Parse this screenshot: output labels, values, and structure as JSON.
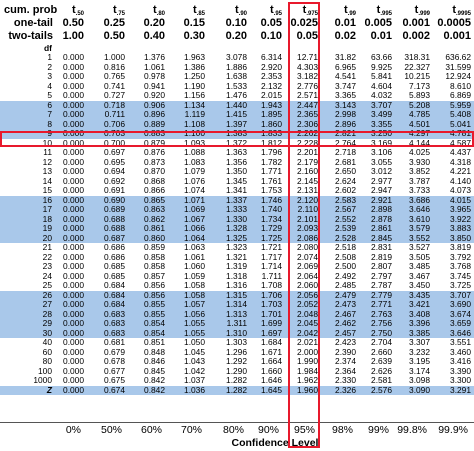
{
  "header": {
    "cum_prob_label": "cum. prob",
    "one_tail_label": "one-tail",
    "two_tails_label": "two-tails",
    "t_symbol": "t",
    "t_subscripts": [
      ".50",
      ".75",
      ".80",
      ".85",
      ".90",
      ".95",
      ".975",
      ".99",
      ".995",
      ".999",
      ".9995"
    ],
    "one_tail": [
      "0.50",
      "0.25",
      "0.20",
      "0.15",
      "0.10",
      "0.05",
      "0.025",
      "0.01",
      "0.005",
      "0.001",
      "0.0005"
    ],
    "two_tails": [
      "1.00",
      "0.50",
      "0.40",
      "0.30",
      "0.20",
      "0.10",
      "0.05",
      "0.02",
      "0.01",
      "0.002",
      "0.001"
    ]
  },
  "df_label": "df",
  "rows": [
    {
      "df": "1",
      "v": [
        "0.000",
        "1.000",
        "1.376",
        "1.963",
        "3.078",
        "6.314",
        "12.71",
        "31.82",
        "63.66",
        "318.31",
        "636.62"
      ]
    },
    {
      "df": "2",
      "v": [
        "0.000",
        "0.816",
        "1.061",
        "1.386",
        "1.886",
        "2.920",
        "4.303",
        "6.965",
        "9.925",
        "22.327",
        "31.599"
      ]
    },
    {
      "df": "3",
      "v": [
        "0.000",
        "0.765",
        "0.978",
        "1.250",
        "1.638",
        "2.353",
        "3.182",
        "4.541",
        "5.841",
        "10.215",
        "12.924"
      ]
    },
    {
      "df": "4",
      "v": [
        "0.000",
        "0.741",
        "0.941",
        "1.190",
        "1.533",
        "2.132",
        "2.776",
        "3.747",
        "4.604",
        "7.173",
        "8.610"
      ]
    },
    {
      "df": "5",
      "v": [
        "0.000",
        "0.727",
        "0.920",
        "1.156",
        "1.476",
        "2.015",
        "2.571",
        "3.365",
        "4.032",
        "5.893",
        "6.869"
      ]
    },
    {
      "df": "6",
      "v": [
        "0.000",
        "0.718",
        "0.906",
        "1.134",
        "1.440",
        "1.943",
        "2.447",
        "3.143",
        "3.707",
        "5.208",
        "5.959"
      ]
    },
    {
      "df": "7",
      "v": [
        "0.000",
        "0.711",
        "0.896",
        "1.119",
        "1.415",
        "1.895",
        "2.365",
        "2.998",
        "3.499",
        "4.785",
        "5.408"
      ]
    },
    {
      "df": "8",
      "v": [
        "0.000",
        "0.706",
        "0.889",
        "1.108",
        "1.397",
        "1.860",
        "2.306",
        "2.896",
        "3.355",
        "4.501",
        "5.041"
      ]
    },
    {
      "df": "9",
      "v": [
        "0.000",
        "0.703",
        "0.883",
        "1.100",
        "1.383",
        "1.833",
        "2.262",
        "2.821",
        "3.250",
        "4.297",
        "4.781"
      ]
    },
    {
      "df": "10",
      "v": [
        "0.000",
        "0.700",
        "0.879",
        "1.093",
        "1.372",
        "1.812",
        "2.228",
        "2.764",
        "3.169",
        "4.144",
        "4.587"
      ]
    },
    {
      "df": "11",
      "v": [
        "0.000",
        "0.697",
        "0.876",
        "1.088",
        "1.363",
        "1.796",
        "2.201",
        "2.718",
        "3.106",
        "4.025",
        "4.437"
      ]
    },
    {
      "df": "12",
      "v": [
        "0.000",
        "0.695",
        "0.873",
        "1.083",
        "1.356",
        "1.782",
        "2.179",
        "2.681",
        "3.055",
        "3.930",
        "4.318"
      ]
    },
    {
      "df": "13",
      "v": [
        "0.000",
        "0.694",
        "0.870",
        "1.079",
        "1.350",
        "1.771",
        "2.160",
        "2.650",
        "3.012",
        "3.852",
        "4.221"
      ]
    },
    {
      "df": "14",
      "v": [
        "0.000",
        "0.692",
        "0.868",
        "1.076",
        "1.345",
        "1.761",
        "2.145",
        "2.624",
        "2.977",
        "3.787",
        "4.140"
      ]
    },
    {
      "df": "15",
      "v": [
        "0.000",
        "0.691",
        "0.866",
        "1.074",
        "1.341",
        "1.753",
        "2.131",
        "2.602",
        "2.947",
        "3.733",
        "4.073"
      ]
    },
    {
      "df": "16",
      "v": [
        "0.000",
        "0.690",
        "0.865",
        "1.071",
        "1.337",
        "1.746",
        "2.120",
        "2.583",
        "2.921",
        "3.686",
        "4.015"
      ]
    },
    {
      "df": "17",
      "v": [
        "0.000",
        "0.689",
        "0.863",
        "1.069",
        "1.333",
        "1.740",
        "2.110",
        "2.567",
        "2.898",
        "3.646",
        "3.965"
      ]
    },
    {
      "df": "18",
      "v": [
        "0.000",
        "0.688",
        "0.862",
        "1.067",
        "1.330",
        "1.734",
        "2.101",
        "2.552",
        "2.878",
        "3.610",
        "3.922"
      ]
    },
    {
      "df": "19",
      "v": [
        "0.000",
        "0.688",
        "0.861",
        "1.066",
        "1.328",
        "1.729",
        "2.093",
        "2.539",
        "2.861",
        "3.579",
        "3.883"
      ]
    },
    {
      "df": "20",
      "v": [
        "0.000",
        "0.687",
        "0.860",
        "1.064",
        "1.325",
        "1.725",
        "2.086",
        "2.528",
        "2.845",
        "3.552",
        "3.850"
      ]
    },
    {
      "df": "21",
      "v": [
        "0.000",
        "0.686",
        "0.859",
        "1.063",
        "1.323",
        "1.721",
        "2.080",
        "2.518",
        "2.831",
        "3.527",
        "3.819"
      ]
    },
    {
      "df": "22",
      "v": [
        "0.000",
        "0.686",
        "0.858",
        "1.061",
        "1.321",
        "1.717",
        "2.074",
        "2.508",
        "2.819",
        "3.505",
        "3.792"
      ]
    },
    {
      "df": "23",
      "v": [
        "0.000",
        "0.685",
        "0.858",
        "1.060",
        "1.319",
        "1.714",
        "2.069",
        "2.500",
        "2.807",
        "3.485",
        "3.768"
      ]
    },
    {
      "df": "24",
      "v": [
        "0.000",
        "0.685",
        "0.857",
        "1.059",
        "1.318",
        "1.711",
        "2.064",
        "2.492",
        "2.797",
        "3.467",
        "3.745"
      ]
    },
    {
      "df": "25",
      "v": [
        "0.000",
        "0.684",
        "0.856",
        "1.058",
        "1.316",
        "1.708",
        "2.060",
        "2.485",
        "2.787",
        "3.450",
        "3.725"
      ]
    },
    {
      "df": "26",
      "v": [
        "0.000",
        "0.684",
        "0.856",
        "1.058",
        "1.315",
        "1.706",
        "2.056",
        "2.479",
        "2.779",
        "3.435",
        "3.707"
      ]
    },
    {
      "df": "27",
      "v": [
        "0.000",
        "0.684",
        "0.855",
        "1.057",
        "1.314",
        "1.703",
        "2.052",
        "2.473",
        "2.771",
        "3.421",
        "3.690"
      ]
    },
    {
      "df": "28",
      "v": [
        "0.000",
        "0.683",
        "0.855",
        "1.056",
        "1.313",
        "1.701",
        "2.048",
        "2.467",
        "2.763",
        "3.408",
        "3.674"
      ]
    },
    {
      "df": "29",
      "v": [
        "0.000",
        "0.683",
        "0.854",
        "1.055",
        "1.311",
        "1.699",
        "2.045",
        "2.462",
        "2.756",
        "3.396",
        "3.659"
      ]
    },
    {
      "df": "30",
      "v": [
        "0.000",
        "0.683",
        "0.854",
        "1.055",
        "1.310",
        "1.697",
        "2.042",
        "2.457",
        "2.750",
        "3.385",
        "3.646"
      ]
    },
    {
      "df": "40",
      "v": [
        "0.000",
        "0.681",
        "0.851",
        "1.050",
        "1.303",
        "1.684",
        "2.021",
        "2.423",
        "2.704",
        "3.307",
        "3.551"
      ]
    },
    {
      "df": "60",
      "v": [
        "0.000",
        "0.679",
        "0.848",
        "1.045",
        "1.296",
        "1.671",
        "2.000",
        "2.390",
        "2.660",
        "3.232",
        "3.460"
      ]
    },
    {
      "df": "80",
      "v": [
        "0.000",
        "0.678",
        "0.846",
        "1.043",
        "1.292",
        "1.664",
        "1.990",
        "2.374",
        "2.639",
        "3.195",
        "3.416"
      ]
    },
    {
      "df": "100",
      "v": [
        "0.000",
        "0.677",
        "0.845",
        "1.042",
        "1.290",
        "1.660",
        "1.984",
        "2.364",
        "2.626",
        "3.174",
        "3.390"
      ]
    },
    {
      "df": "1000",
      "v": [
        "0.000",
        "0.675",
        "0.842",
        "1.037",
        "1.282",
        "1.646",
        "1.962",
        "2.330",
        "2.581",
        "3.098",
        "3.300"
      ]
    },
    {
      "df": "z",
      "v": [
        "0.000",
        "0.674",
        "0.842",
        "1.036",
        "1.282",
        "1.645",
        "1.960",
        "2.326",
        "2.576",
        "3.090",
        "3.291"
      ]
    }
  ],
  "confidence_levels": [
    "0%",
    "50%",
    "60%",
    "70%",
    "80%",
    "90%",
    "95%",
    "98%",
    "99%",
    "99.8%",
    "99.9%"
  ],
  "confidence_label": "Confidence Level",
  "colors": {
    "shade": "#a9c8ea",
    "highlight": "#e8192c"
  }
}
